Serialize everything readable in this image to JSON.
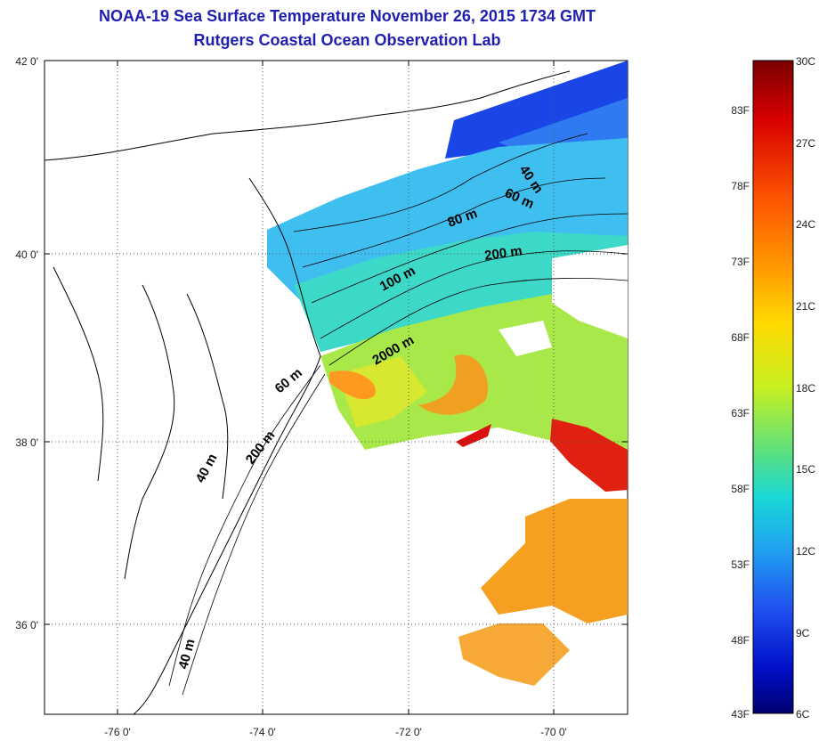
{
  "header": {
    "title": "NOAA-19 Sea Surface Temperature November 26, 2015 1734 GMT",
    "subtitle": "Rutgers Coastal Ocean Observation Lab"
  },
  "map": {
    "lat_ticks": [
      "42 0'",
      "40 0'",
      "38 0'",
      "36 0'"
    ],
    "lon_ticks": [
      "-76 0'",
      "-74 0'",
      "-72 0'",
      "-70 0'"
    ],
    "contour_labels": [
      "40 m",
      "60 m",
      "80 m",
      "200 m",
      "100 m",
      "2000 m",
      "60 m",
      "40 m",
      "200 m",
      "40 m"
    ]
  },
  "colorbar": {
    "celsius_labels": [
      "30C",
      "27C",
      "24C",
      "21C",
      "18C",
      "15C",
      "12C",
      "9C",
      "6C"
    ],
    "fahrenheit_labels": [
      "83F",
      "78F",
      "73F",
      "68F",
      "63F",
      "58F",
      "53F",
      "48F",
      "43F"
    ],
    "colors": [
      "#7a0000",
      "#d80000",
      "#ff5a00",
      "#ff9a00",
      "#ffd800",
      "#c8f020",
      "#5ae080",
      "#18d8d8",
      "#20a0f0",
      "#2050f0",
      "#0010c8",
      "#000070"
    ]
  }
}
